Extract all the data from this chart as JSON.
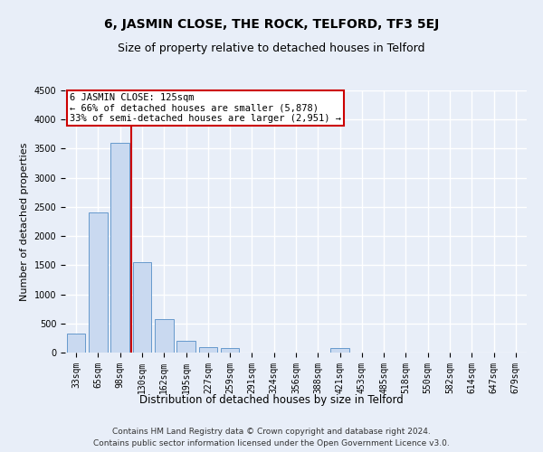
{
  "title": "6, JASMIN CLOSE, THE ROCK, TELFORD, TF3 5EJ",
  "subtitle": "Size of property relative to detached houses in Telford",
  "xlabel": "Distribution of detached houses by size in Telford",
  "ylabel": "Number of detached properties",
  "categories": [
    "33sqm",
    "65sqm",
    "98sqm",
    "130sqm",
    "162sqm",
    "195sqm",
    "227sqm",
    "259sqm",
    "291sqm",
    "324sqm",
    "356sqm",
    "388sqm",
    "421sqm",
    "453sqm",
    "485sqm",
    "518sqm",
    "550sqm",
    "582sqm",
    "614sqm",
    "647sqm",
    "679sqm"
  ],
  "values": [
    330,
    2400,
    3600,
    1550,
    580,
    200,
    100,
    70,
    0,
    0,
    0,
    0,
    70,
    0,
    0,
    0,
    0,
    0,
    0,
    0,
    0
  ],
  "bar_color": "#c9d9f0",
  "bar_edge_color": "#6699cc",
  "vline_color": "#cc0000",
  "annotation_line1": "6 JASMIN CLOSE: 125sqm",
  "annotation_line2": "← 66% of detached houses are smaller (5,878)",
  "annotation_line3": "33% of semi-detached houses are larger (2,951) →",
  "annotation_box_edge_color": "#cc0000",
  "vline_x": 2.5,
  "ylim": [
    0,
    4500
  ],
  "yticks": [
    0,
    500,
    1000,
    1500,
    2000,
    2500,
    3000,
    3500,
    4000,
    4500
  ],
  "footer_line1": "Contains HM Land Registry data © Crown copyright and database right 2024.",
  "footer_line2": "Contains public sector information licensed under the Open Government Licence v3.0.",
  "bg_color": "#e8eef8",
  "plot_bg_color": "#e8eef8",
  "grid_color": "#ffffff",
  "title_fontsize": 10,
  "subtitle_fontsize": 9,
  "axis_label_fontsize": 8,
  "tick_fontsize": 7,
  "footer_fontsize": 6.5,
  "annotation_fontsize": 7.5
}
